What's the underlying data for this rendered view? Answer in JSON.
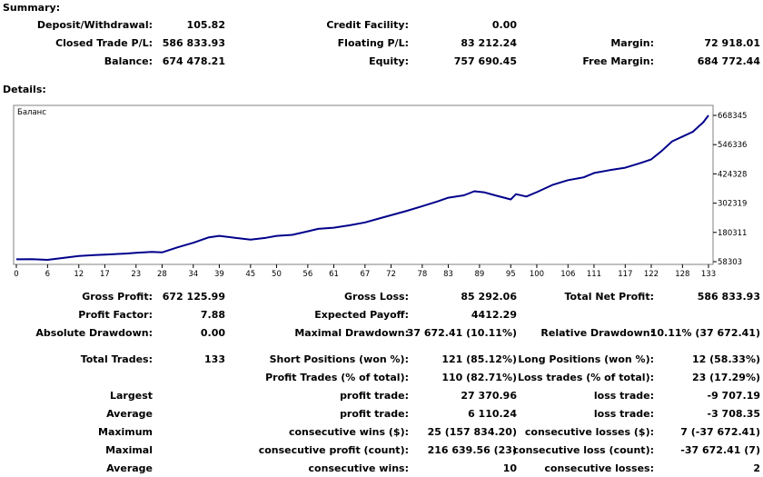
{
  "summary": {
    "title": "Summary:",
    "deposit_label": "Deposit/Withdrawal:",
    "deposit_value": "105.82",
    "credit_label": "Credit Facility:",
    "credit_value": "0.00",
    "closed_label": "Closed Trade P/L:",
    "closed_value": "586 833.93",
    "floating_label": "Floating P/L:",
    "floating_value": "83 212.24",
    "margin_label": "Margin:",
    "margin_value": "72 918.01",
    "balance_label": "Balance:",
    "balance_value": "674 478.21",
    "equity_label": "Equity:",
    "equity_value": "757 690.45",
    "free_margin_label": "Free Margin:",
    "free_margin_value": "684 772.44"
  },
  "details": {
    "title": "Details:",
    "rows": [
      [
        "Gross Profit:",
        "672 125.99",
        "Gross Loss:",
        "85 292.06",
        "Total Net Profit:",
        "586 833.93"
      ],
      [
        "Profit Factor:",
        "7.88",
        "Expected Payoff:",
        "4412.29",
        "",
        ""
      ],
      [
        "Absolute Drawdown:",
        "0.00",
        "Maximal Drawdown:",
        "37 672.41 (10.11%)",
        "Relative Drawdown:",
        "10.11% (37 672.41)"
      ],
      [
        "Total Trades:",
        "133",
        "Short Positions (won %):",
        "121 (85.12%)",
        "Long Positions (won %):",
        "12 (58.33%)"
      ],
      [
        "",
        "",
        "Profit Trades (% of total):",
        "110 (82.71%)",
        "Loss trades (% of total):",
        "23 (17.29%)"
      ],
      [
        "Largest",
        "",
        "profit trade:",
        "27 370.96",
        "loss trade:",
        "-9 707.19"
      ],
      [
        "Average",
        "",
        "profit trade:",
        "6 110.24",
        "loss trade:",
        "-3 708.35"
      ],
      [
        "Maximum",
        "",
        "consecutive wins ($):",
        "25 (157 834.20)",
        "consecutive losses ($):",
        "7 (-37 672.41)"
      ],
      [
        "Maximal",
        "",
        "consecutive profit (count):",
        "216 639.56 (23)",
        "consecutive loss (count):",
        "-37 672.41 (7)"
      ],
      [
        "Average",
        "",
        "consecutive wins:",
        "10",
        "consecutive losses:",
        "2"
      ]
    ]
  },
  "chart_data": {
    "type": "line",
    "title": "Баланс",
    "line_color": "#00008b",
    "x_ticks": [
      "0",
      "6",
      "12",
      "17",
      "23",
      "28",
      "34",
      "39",
      "45",
      "50",
      "56",
      "61",
      "67",
      "72",
      "78",
      "83",
      "89",
      "95",
      "100",
      "106",
      "111",
      "117",
      "122",
      "128",
      "133"
    ],
    "y_ticks": [
      "668345",
      "546336",
      "424328",
      "302319",
      "180311",
      "58303"
    ],
    "xlim": [
      0,
      133
    ],
    "ylim": [
      58303,
      668345
    ],
    "x": [
      0,
      3,
      6,
      9,
      12,
      15,
      17,
      21,
      23,
      26,
      28,
      31,
      34,
      37,
      39,
      42,
      45,
      48,
      50,
      53,
      56,
      58,
      61,
      64,
      67,
      70,
      72,
      75,
      78,
      81,
      83,
      86,
      88,
      90,
      92,
      95,
      96,
      98,
      100,
      103,
      106,
      109,
      111,
      114,
      117,
      120,
      122,
      124,
      126,
      128,
      130,
      132,
      133
    ],
    "y": [
      68000,
      69000,
      66000,
      74000,
      82000,
      86000,
      88000,
      92000,
      95000,
      99000,
      97000,
      118000,
      137000,
      160000,
      166000,
      158000,
      150000,
      158000,
      166000,
      170000,
      185000,
      195000,
      200000,
      210000,
      222000,
      240000,
      252000,
      270000,
      290000,
      310000,
      325000,
      335000,
      352000,
      347000,
      335000,
      318000,
      340000,
      330000,
      348000,
      378000,
      398000,
      410000,
      428000,
      440000,
      450000,
      470000,
      485000,
      520000,
      560000,
      580000,
      600000,
      640000,
      668345
    ]
  }
}
